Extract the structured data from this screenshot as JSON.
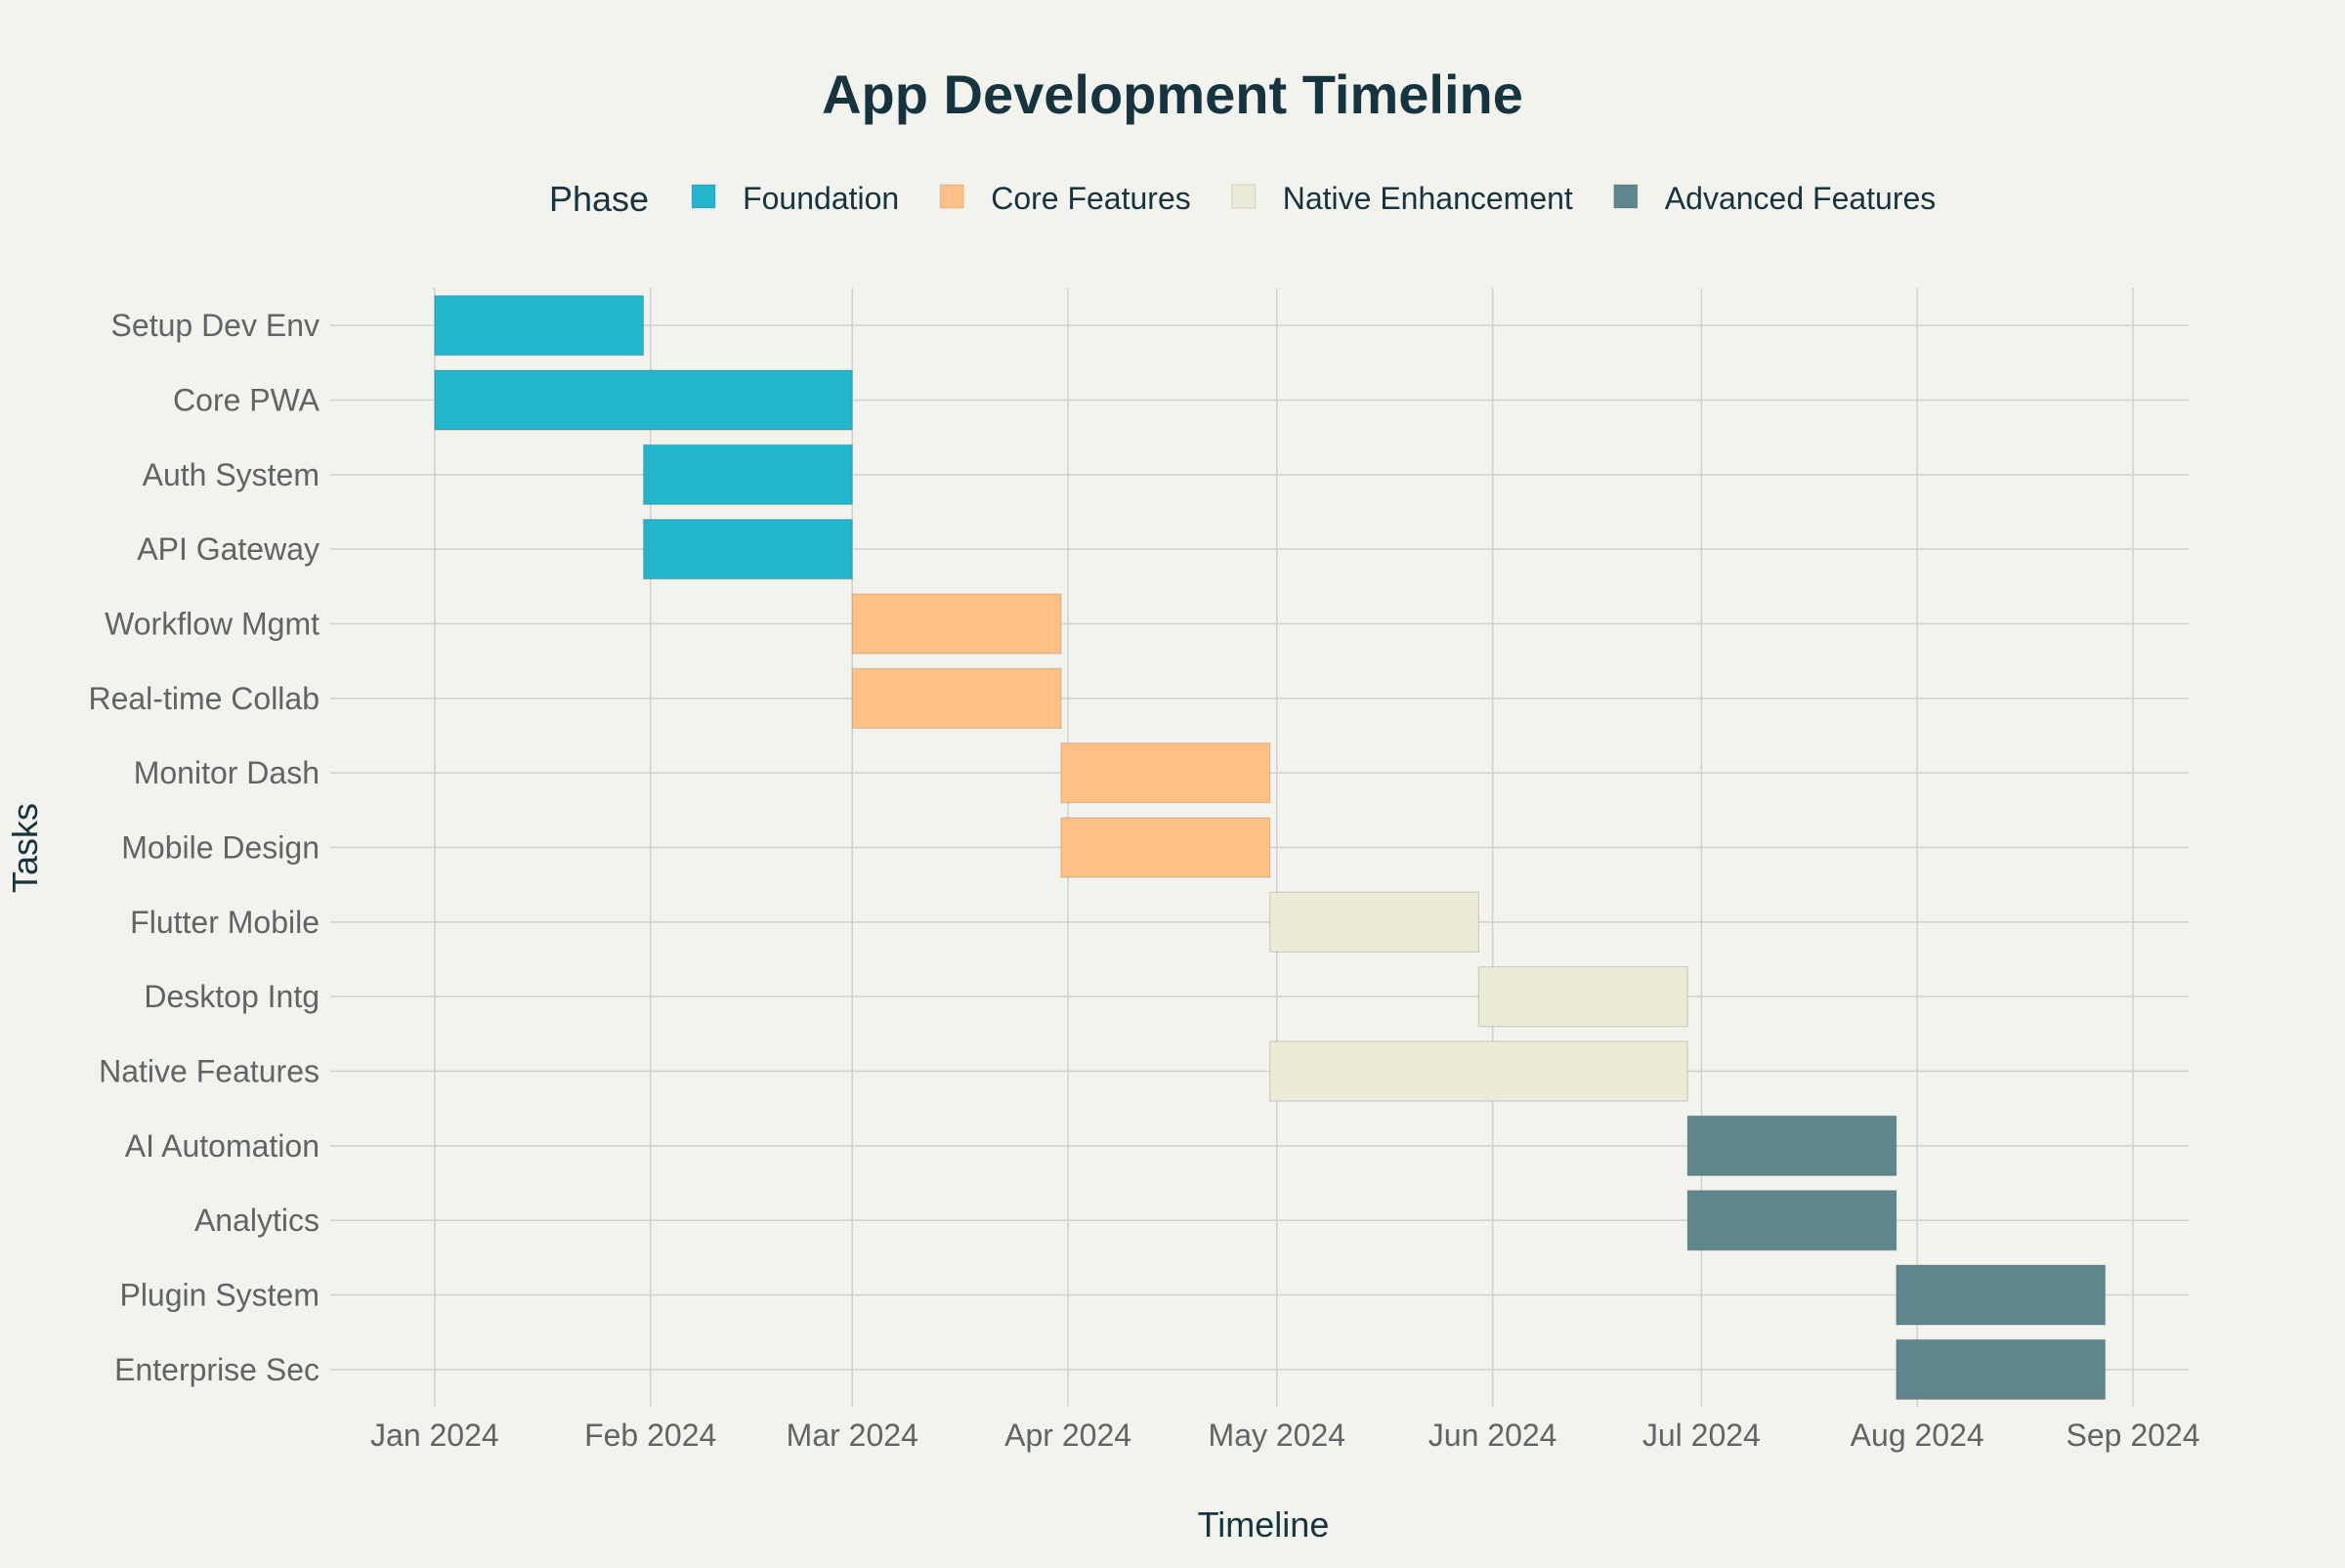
{
  "chart_data": {
    "type": "gantt",
    "title": "App Development Timeline",
    "xlabel": "Timeline",
    "ylabel": "Tasks",
    "legend": {
      "title": "Phase",
      "placement": "top-center",
      "items": [
        {
          "name": "Foundation",
          "color": "#21b6cc"
        },
        {
          "name": "Core Features",
          "color": "#ffc085"
        },
        {
          "name": "Native Enhancement",
          "color": "#ecebd6"
        },
        {
          "name": "Advanced Features",
          "color": "#5e868c"
        }
      ]
    },
    "grid": true,
    "xlim": [
      "2023-12-17",
      "2024-09-09"
    ],
    "x_ticks": [
      {
        "date": "2024-01-01",
        "label": "Jan 2024"
      },
      {
        "date": "2024-02-01",
        "label": "Feb 2024"
      },
      {
        "date": "2024-03-01",
        "label": "Mar 2024"
      },
      {
        "date": "2024-04-01",
        "label": "Apr 2024"
      },
      {
        "date": "2024-05-01",
        "label": "May 2024"
      },
      {
        "date": "2024-06-01",
        "label": "Jun 2024"
      },
      {
        "date": "2024-07-01",
        "label": "Jul 2024"
      },
      {
        "date": "2024-08-01",
        "label": "Aug 2024"
      },
      {
        "date": "2024-09-01",
        "label": "Sep 2024"
      }
    ],
    "tasks": [
      {
        "task": "Setup Dev Env",
        "start": "2024-01-01",
        "end": "2024-01-31",
        "phase": "Foundation"
      },
      {
        "task": "Core PWA",
        "start": "2024-01-01",
        "end": "2024-03-01",
        "phase": "Foundation"
      },
      {
        "task": "Auth System",
        "start": "2024-01-31",
        "end": "2024-03-01",
        "phase": "Foundation"
      },
      {
        "task": "API Gateway",
        "start": "2024-01-31",
        "end": "2024-03-01",
        "phase": "Foundation"
      },
      {
        "task": "Workflow Mgmt",
        "start": "2024-03-01",
        "end": "2024-03-31",
        "phase": "Core Features"
      },
      {
        "task": "Real-time Collab",
        "start": "2024-03-01",
        "end": "2024-03-31",
        "phase": "Core Features"
      },
      {
        "task": "Monitor Dash",
        "start": "2024-03-31",
        "end": "2024-04-30",
        "phase": "Core Features"
      },
      {
        "task": "Mobile Design",
        "start": "2024-03-31",
        "end": "2024-04-30",
        "phase": "Core Features"
      },
      {
        "task": "Flutter Mobile",
        "start": "2024-04-30",
        "end": "2024-05-30",
        "phase": "Native Enhancement"
      },
      {
        "task": "Desktop Intg",
        "start": "2024-05-30",
        "end": "2024-06-29",
        "phase": "Native Enhancement"
      },
      {
        "task": "Native Features",
        "start": "2024-04-30",
        "end": "2024-06-29",
        "phase": "Native Enhancement"
      },
      {
        "task": "AI Automation",
        "start": "2024-06-29",
        "end": "2024-07-29",
        "phase": "Advanced Features"
      },
      {
        "task": "Analytics",
        "start": "2024-06-29",
        "end": "2024-07-29",
        "phase": "Advanced Features"
      },
      {
        "task": "Plugin System",
        "start": "2024-07-29",
        "end": "2024-08-28",
        "phase": "Advanced Features"
      },
      {
        "task": "Enterprise Sec",
        "start": "2024-07-29",
        "end": "2024-08-28",
        "phase": "Advanced Features"
      }
    ]
  }
}
